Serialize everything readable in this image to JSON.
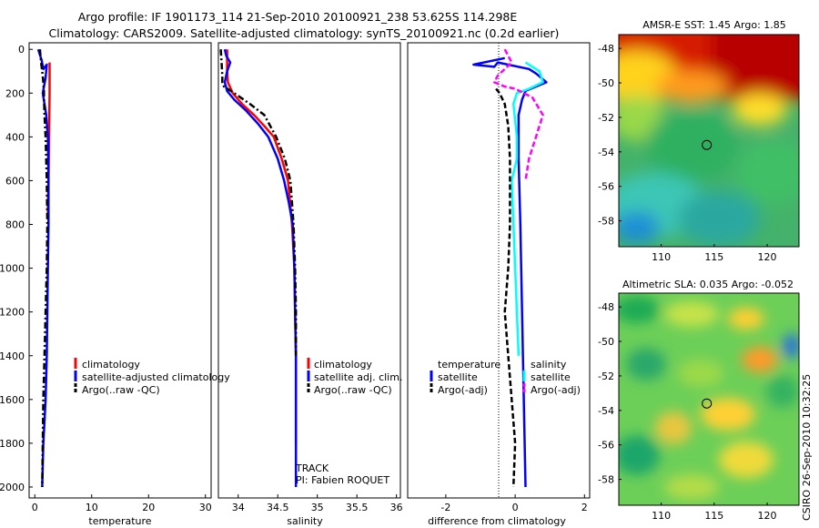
{
  "header": {
    "line1": "Argo profile: IF 1901173_114 21-Sep-2010 20100921_238 53.625S 114.298E",
    "line2": "Climatology: CARS2009. Satellite-adjusted climatology: synTS_20100921.nc (0.2d earlier)"
  },
  "colors": {
    "clim": "#ff0000",
    "sat": "#0000ff",
    "argo": "#000000",
    "sal_sat": "#00ffff",
    "sal_argo": "#ff00ff"
  },
  "chart_data": [
    {
      "type": "line",
      "id": "temperature",
      "xlabel": "temperature",
      "xlim": [
        -1,
        31
      ],
      "ylim": [
        2050,
        -30
      ],
      "xticks": [
        0,
        10,
        20,
        30
      ],
      "xtick_labels": [
        "0",
        "10",
        "20",
        "30"
      ],
      "yticks": [
        0,
        200,
        400,
        600,
        800,
        1000,
        1200,
        1400,
        1600,
        1800,
        2000
      ],
      "ytick_labels": [
        "0",
        "200",
        "400",
        "600",
        "800",
        "1000",
        "1200",
        "1400",
        "1600",
        "1800",
        "2000"
      ],
      "legend": [
        "climatology",
        "satellite-adjusted climatology",
        "Argo(..raw -QC)"
      ],
      "series": [
        {
          "name": "climatology",
          "color": "clim",
          "dash": "solid",
          "x": [
            2.6,
            2.6,
            2.6,
            2.5,
            2.4,
            2.3,
            2.3
          ],
          "y": [
            60,
            150,
            200,
            400,
            600,
            700,
            760
          ]
        },
        {
          "name": "satellite-adjusted climatology",
          "color": "sat",
          "dash": "solid",
          "x": [
            0.6,
            1.2,
            1.5,
            2.1,
            1.9,
            1.4,
            2.0,
            2.3,
            2.4,
            2.4,
            2.3,
            2.2,
            2.1,
            1.9,
            1.7,
            1.5,
            1.4,
            1.3
          ],
          "y": [
            0,
            50,
            90,
            70,
            130,
            200,
            300,
            400,
            600,
            800,
            1000,
            1200,
            1400,
            1600,
            1700,
            1800,
            1900,
            2000
          ]
        },
        {
          "name": "Argo(..raw -QC)",
          "color": "argo",
          "dash": "dashdot",
          "x": [
            0.9,
            1.1,
            1.3,
            1.5,
            1.6,
            1.6,
            1.7,
            1.9,
            2.1,
            2.2,
            2.1,
            1.9,
            1.7,
            1.5,
            1.4,
            1.3
          ],
          "y": [
            0,
            60,
            100,
            150,
            190,
            220,
            300,
            400,
            600,
            800,
            1000,
            1200,
            1400,
            1600,
            1800,
            2000
          ]
        }
      ]
    },
    {
      "type": "line",
      "id": "salinity",
      "xlabel": "salinity",
      "xlim": [
        33.75,
        36.05
      ],
      "ylim": [
        2050,
        -30
      ],
      "xticks": [
        34,
        34.5,
        35,
        35.5,
        36
      ],
      "xtick_labels": [
        "34",
        "34.5",
        "35",
        "35.5",
        "36"
      ],
      "legend": [
        "climatology",
        "satellite adj. clim.",
        "Argo(..raw -QC)"
      ],
      "annotations": [
        "TRACK",
        "PI: Fabien ROQUET"
      ],
      "series": [
        {
          "name": "climatology",
          "color": "clim",
          "dash": "solid",
          "x": [
            33.86,
            33.86,
            33.87,
            33.93,
            34.05,
            34.2,
            34.33,
            34.45,
            34.55,
            34.63,
            34.68,
            34.71,
            34.72,
            34.73,
            34.73,
            34.73
          ],
          "y": [
            0,
            100,
            150,
            200,
            250,
            300,
            350,
            400,
            500,
            600,
            800,
            1000,
            1200,
            1400,
            1600,
            1800
          ]
        },
        {
          "name": "satellite adj. clim.",
          "color": "sat",
          "dash": "solid",
          "x": [
            33.83,
            33.85,
            33.9,
            33.86,
            33.83,
            33.86,
            33.95,
            34.1,
            34.25,
            34.38,
            34.5,
            34.58,
            34.64,
            34.69,
            34.71,
            34.72,
            34.73,
            34.73,
            34.73
          ],
          "y": [
            0,
            30,
            60,
            100,
            150,
            190,
            230,
            280,
            340,
            400,
            500,
            600,
            700,
            800,
            1000,
            1200,
            1400,
            1700,
            2000
          ]
        },
        {
          "name": "Argo(..raw -QC)",
          "color": "argo",
          "dash": "dashdot",
          "x": [
            33.78,
            33.79,
            33.8,
            33.8,
            33.82,
            33.95,
            34.15,
            34.33,
            34.48,
            34.59,
            34.66,
            34.7,
            34.72,
            34.73,
            34.73
          ],
          "y": [
            0,
            60,
            120,
            150,
            170,
            200,
            250,
            300,
            400,
            500,
            600,
            800,
            1000,
            1200,
            1400
          ]
        }
      ]
    },
    {
      "type": "line",
      "id": "difference",
      "xlabel": "difference from climatology",
      "xlim": [
        -3.1,
        2.15
      ],
      "ylim": [
        2050,
        -30
      ],
      "xticks": [
        -2,
        0,
        2
      ],
      "xtick_labels": [
        "-2",
        "0",
        "2"
      ],
      "legend_groups": [
        {
          "title": "temperature",
          "items": [
            "satellite",
            "Argo(-adj)"
          ]
        },
        {
          "title": "salinity",
          "items": [
            "satellite",
            "Argo(-adj)"
          ]
        }
      ],
      "series": [
        {
          "name": "temperature satellite",
          "color": "sat",
          "dash": "solid",
          "x": [
            -0.3,
            -1.2,
            -0.6,
            -0.5,
            0.4,
            0.6,
            0.9,
            0.3,
            0.2,
            0.1,
            0.1,
            0.15,
            0.2,
            0.25,
            0.3
          ],
          "y": [
            40,
            70,
            80,
            60,
            90,
            110,
            150,
            190,
            230,
            300,
            500,
            800,
            1200,
            1600,
            2000
          ]
        },
        {
          "name": "salinity satellite",
          "color": "sal_sat",
          "dash": "solid",
          "x": [
            0.3,
            0.7,
            0.8,
            0.4,
            0.05,
            -0.05,
            0.05,
            0.05,
            -0.1,
            -0.05,
            0.0,
            0.05,
            0.1
          ],
          "y": [
            60,
            100,
            150,
            180,
            200,
            250,
            400,
            500,
            600,
            800,
            1000,
            1200,
            1400
          ]
        },
        {
          "name": "temperature Argo(-adj)",
          "color": "argo",
          "dash": "dashed",
          "x": [
            -0.55,
            -0.45,
            -0.3,
            -0.2,
            -0.15,
            -0.15,
            -0.2,
            -0.3,
            -0.2,
            -0.1,
            0.0,
            -0.05
          ],
          "y": [
            180,
            200,
            250,
            350,
            500,
            800,
            1000,
            1200,
            1400,
            1600,
            1800,
            2000
          ]
        },
        {
          "name": "salinity Argo(-adj)",
          "color": "sal_argo",
          "dash": "dashed",
          "x": [
            -0.3,
            -0.1,
            -0.5,
            -0.6,
            -0.3,
            0.0,
            0.5,
            0.8,
            0.6,
            0.4,
            0.3
          ],
          "y": [
            0,
            60,
            120,
            150,
            170,
            180,
            220,
            300,
            400,
            500,
            600
          ]
        }
      ]
    },
    {
      "type": "heatmap",
      "id": "sst",
      "title": "AMSR-E SST: 1.45 Argo: 1.85",
      "xlim": [
        106,
        123
      ],
      "ylim": [
        -59.5,
        -47.2
      ],
      "xticks": [
        110,
        115,
        120
      ],
      "xtick_labels": [
        "110",
        "115",
        "120"
      ],
      "yticks": [
        -48,
        -50,
        -52,
        -54,
        -56,
        -58
      ],
      "ytick_labels": [
        "-48",
        "-50",
        "-52",
        "-54",
        "-56",
        "-58"
      ],
      "marker": {
        "lon": 114.3,
        "lat": -53.6
      }
    },
    {
      "type": "heatmap",
      "id": "sla",
      "title": "Altimetric SLA: 0.035 Argo: -0.052",
      "xlim": [
        106,
        123
      ],
      "ylim": [
        -59.5,
        -47.2
      ],
      "xticks": [
        110,
        115,
        120
      ],
      "xtick_labels": [
        "110",
        "115",
        "120"
      ],
      "yticks": [
        -48,
        -50,
        -52,
        -54,
        -56,
        -58
      ],
      "ytick_labels": [
        "-48",
        "-50",
        "-52",
        "-54",
        "-56",
        "-58"
      ],
      "marker": {
        "lon": 114.3,
        "lat": -53.6
      }
    }
  ],
  "footer": {
    "stamp": "CSIRO 26-Sep-2010 10:32:25"
  }
}
